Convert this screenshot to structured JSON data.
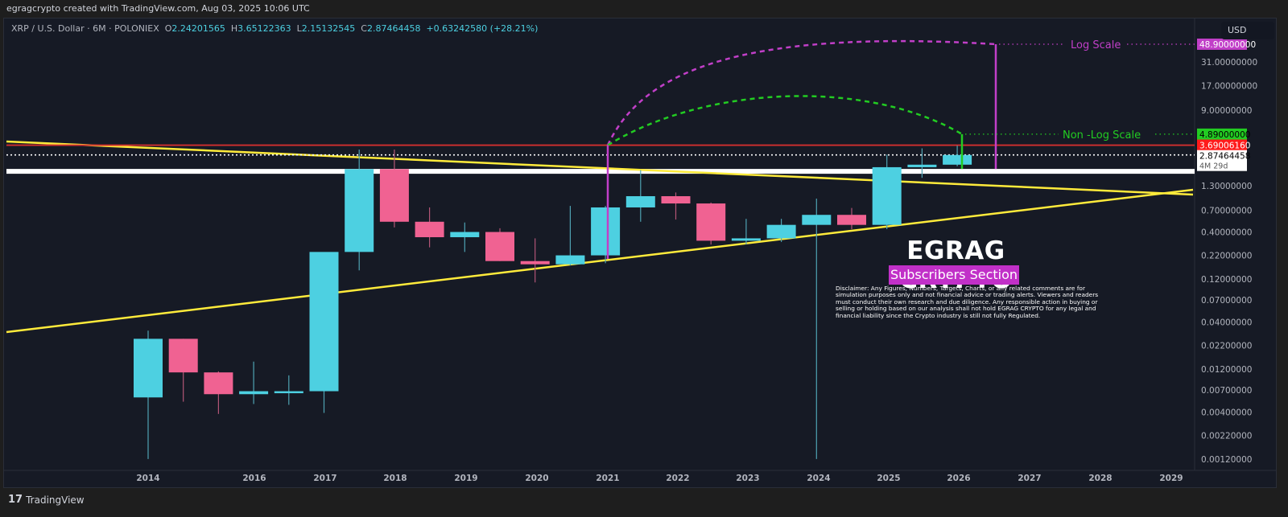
{
  "header": {
    "attribution": "egragcrypto created with TradingView.com, Aug 03, 2025 10:06 UTC"
  },
  "legend": {
    "symbol": "XRP / U.S. Dollar · 6M · POLONIEX",
    "open_label": "O",
    "open": "2.24201565",
    "high_label": "H",
    "high": "3.65122363",
    "low_label": "L",
    "low": "2.15132545",
    "close_label": "C",
    "close": "2.87464458",
    "change": "+0.63242580 (+28.21%)"
  },
  "currency_button": "USD",
  "footer": {
    "logo_glyph": "17",
    "brand": "TradingView"
  },
  "overlay": {
    "brand_title": "EGRAG CRYPTO",
    "subscribers_label": "Subscribers Section",
    "disclaimer": "Disclaimer: Any Figures, Numbers, Targets, Charts, or any related comments are for simulation purposes only and not financial advice or trading alerts. Viewers and readers must conduct their own research and due diligence. Any responsible action in buying or selling or holding based on our analysis shall not hold EGRAG CRYPTO for any legal and financial liability since the Crypto industry is still not fully Regulated."
  },
  "colors": {
    "background": "#161a25",
    "up": "#4dd0e1",
    "down": "#f06292",
    "trendline": "#ffeb3b",
    "resistance": "#d32f2f",
    "log_scale": "#c13fc8",
    "non_log_scale": "#22cc22"
  },
  "chart_data": {
    "type": "candlestick",
    "title": "XRP / U.S. Dollar · 6M · POLONIEX",
    "yscale": "log",
    "ylabel": "USD",
    "ylim": [
      0.001,
      60
    ],
    "y_ticks": [
      "48.90000000",
      "31.00000000",
      "17.00000000",
      "9.00000000",
      "4.89000000",
      "3.69006160",
      "2.87464458",
      "1.30000000",
      "0.70000000",
      "0.40000000",
      "0.22000000",
      "0.12000000",
      "0.07000000",
      "0.04000000",
      "0.02200000",
      "0.01200000",
      "0.00700000",
      "0.00400000",
      "0.00220000",
      "0.00120000"
    ],
    "x_ticks": [
      "2014",
      "2016",
      "2017",
      "2018",
      "2019",
      "2020",
      "2021",
      "2022",
      "2023",
      "2024",
      "2025",
      "2026",
      "2027",
      "2028",
      "2029"
    ],
    "price_tags": [
      {
        "label": "48.90000000",
        "color": "#c13fc8",
        "text_color": "#ffffff"
      },
      {
        "label": "4.89000000",
        "color": "#22cc22",
        "text_color": "#000000"
      },
      {
        "label": "3.69006160",
        "color": "#ff1a1a",
        "text_color": "#ffffff"
      },
      {
        "label": "2.87464458",
        "sub": "4M 29d",
        "color": "#ffffff",
        "text_color": "#000000"
      }
    ],
    "candles": [
      {
        "period": "2014 H1",
        "open": 0.0058,
        "high": 0.032,
        "low": 0.0012,
        "close": 0.026
      },
      {
        "period": "2014 H2",
        "open": 0.026,
        "high": 0.026,
        "low": 0.0052,
        "close": 0.011
      },
      {
        "period": "2015 H1",
        "open": 0.011,
        "high": 0.0113,
        "low": 0.0038,
        "close": 0.0063
      },
      {
        "period": "2015 H2",
        "open": 0.0063,
        "high": 0.0145,
        "low": 0.0049,
        "close": 0.0068
      },
      {
        "period": "2016 H1",
        "open": 0.0068,
        "high": 0.0102,
        "low": 0.0048,
        "close": 0.0068
      },
      {
        "period": "2016 H2",
        "open": 0.0068,
        "high": 0.045,
        "low": 0.0039,
        "close": 0.24
      },
      {
        "period": "2017 H1",
        "open": 0.24,
        "high": 3.3,
        "low": 0.15,
        "close": 2.0
      },
      {
        "period": "2017 H2",
        "open": 2.0,
        "high": 3.3,
        "low": 0.45,
        "close": 0.52
      },
      {
        "period": "2018 H1",
        "open": 0.52,
        "high": 0.75,
        "low": 0.27,
        "close": 0.35
      },
      {
        "period": "2018 H2",
        "open": 0.35,
        "high": 0.51,
        "low": 0.24,
        "close": 0.4
      },
      {
        "period": "2019 H1",
        "open": 0.4,
        "high": 0.44,
        "low": 0.19,
        "close": 0.19
      },
      {
        "period": "2019 H2",
        "open": 0.19,
        "high": 0.34,
        "low": 0.11,
        "close": 0.175
      },
      {
        "period": "2020 H1",
        "open": 0.175,
        "high": 0.78,
        "low": 0.17,
        "close": 0.22
      },
      {
        "period": "2020 H2",
        "open": 0.22,
        "high": 0.78,
        "low": 0.18,
        "close": 0.75
      },
      {
        "period": "2021 H1",
        "open": 0.75,
        "high": 1.95,
        "low": 0.52,
        "close": 1.0
      },
      {
        "period": "2021 H2",
        "open": 1.0,
        "high": 1.1,
        "low": 0.55,
        "close": 0.83
      },
      {
        "period": "2022 H1",
        "open": 0.83,
        "high": 0.85,
        "low": 0.29,
        "close": 0.32
      },
      {
        "period": "2022 H2",
        "open": 0.32,
        "high": 0.56,
        "low": 0.29,
        "close": 0.34
      },
      {
        "period": "2023 H1",
        "open": 0.34,
        "high": 0.56,
        "low": 0.31,
        "close": 0.48
      },
      {
        "period": "2023 H2",
        "open": 0.48,
        "high": 0.94,
        "low": 0.0012,
        "close": 0.62
      },
      {
        "period": "2024 H1",
        "open": 0.62,
        "high": 0.74,
        "low": 0.43,
        "close": 0.48
      },
      {
        "period": "2024 H2",
        "open": 0.48,
        "high": 2.9,
        "low": 0.43,
        "close": 2.1
      },
      {
        "period": "2025 H1",
        "open": 2.1,
        "high": 3.4,
        "low": 1.6,
        "close": 2.24
      },
      {
        "period": "2025 H2",
        "open": 2.24,
        "high": 3.65,
        "low": 2.15,
        "close": 2.87
      }
    ],
    "annotations": [
      {
        "text": "Log Scale",
        "target": 48.9,
        "color": "#c13fc8"
      },
      {
        "text": "Non -Log Scale",
        "target": 4.89,
        "color": "#22cc22"
      }
    ],
    "lines": [
      {
        "name": "ascending-trendline",
        "color": "#ffeb3b"
      },
      {
        "name": "descending-trendline",
        "color": "#ffeb3b"
      },
      {
        "name": "resistance",
        "price": 3.6900616,
        "color": "#d32f2f"
      },
      {
        "name": "current-price",
        "price": 2.87464458,
        "style": "dotted",
        "color": "#ffffff"
      },
      {
        "name": "support-band",
        "color": "#ffffff"
      }
    ]
  }
}
